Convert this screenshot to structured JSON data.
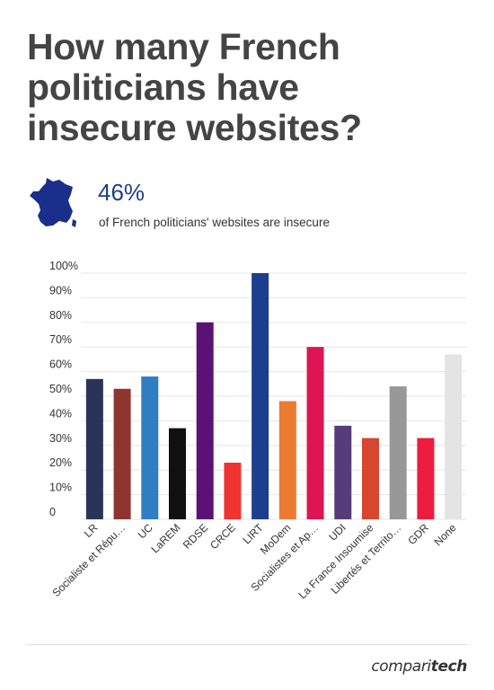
{
  "title_lines": [
    "How many French",
    "politicians have",
    "insecure websites?"
  ],
  "stat": {
    "value": "46%",
    "caption": "of French politicians' websites are insecure"
  },
  "brand": {
    "part1": "compari",
    "part2": "tech"
  },
  "icons": {
    "stat_map": "france-map-icon"
  },
  "colors": {
    "map": "#1a2f8c",
    "stat_value": "#1f3d8c",
    "grid": "#e6e6e6"
  },
  "chart_data": {
    "type": "bar",
    "title": "",
    "xlabel": "",
    "ylabel": "",
    "ylim": [
      0,
      100
    ],
    "y_ticks": [
      "0",
      "10%",
      "20%",
      "30%",
      "40%",
      "50%",
      "60%",
      "70%",
      "80%",
      "90%",
      "100%"
    ],
    "grid": true,
    "legend": "none",
    "categories": [
      "LR",
      "Socialiste et Répu…",
      "UC",
      "LaREM",
      "RDSE",
      "CRCE",
      "LIRT",
      "MoDem",
      "Socialistes et Ap…",
      "UDI",
      "La France Insoumise",
      "Libertés et Territo…",
      "GDR",
      "None"
    ],
    "values": [
      57,
      53,
      58,
      37,
      80,
      23,
      100,
      48,
      70,
      38,
      33,
      54,
      33,
      67
    ],
    "colors": [
      "#283558",
      "#8e3530",
      "#2f7ec3",
      "#111111",
      "#5a1275",
      "#ef3432",
      "#1b3f8e",
      "#ec7b32",
      "#dc1553",
      "#543d7a",
      "#d74630",
      "#989898",
      "#ee1c3e",
      "#e4e4e4"
    ]
  }
}
